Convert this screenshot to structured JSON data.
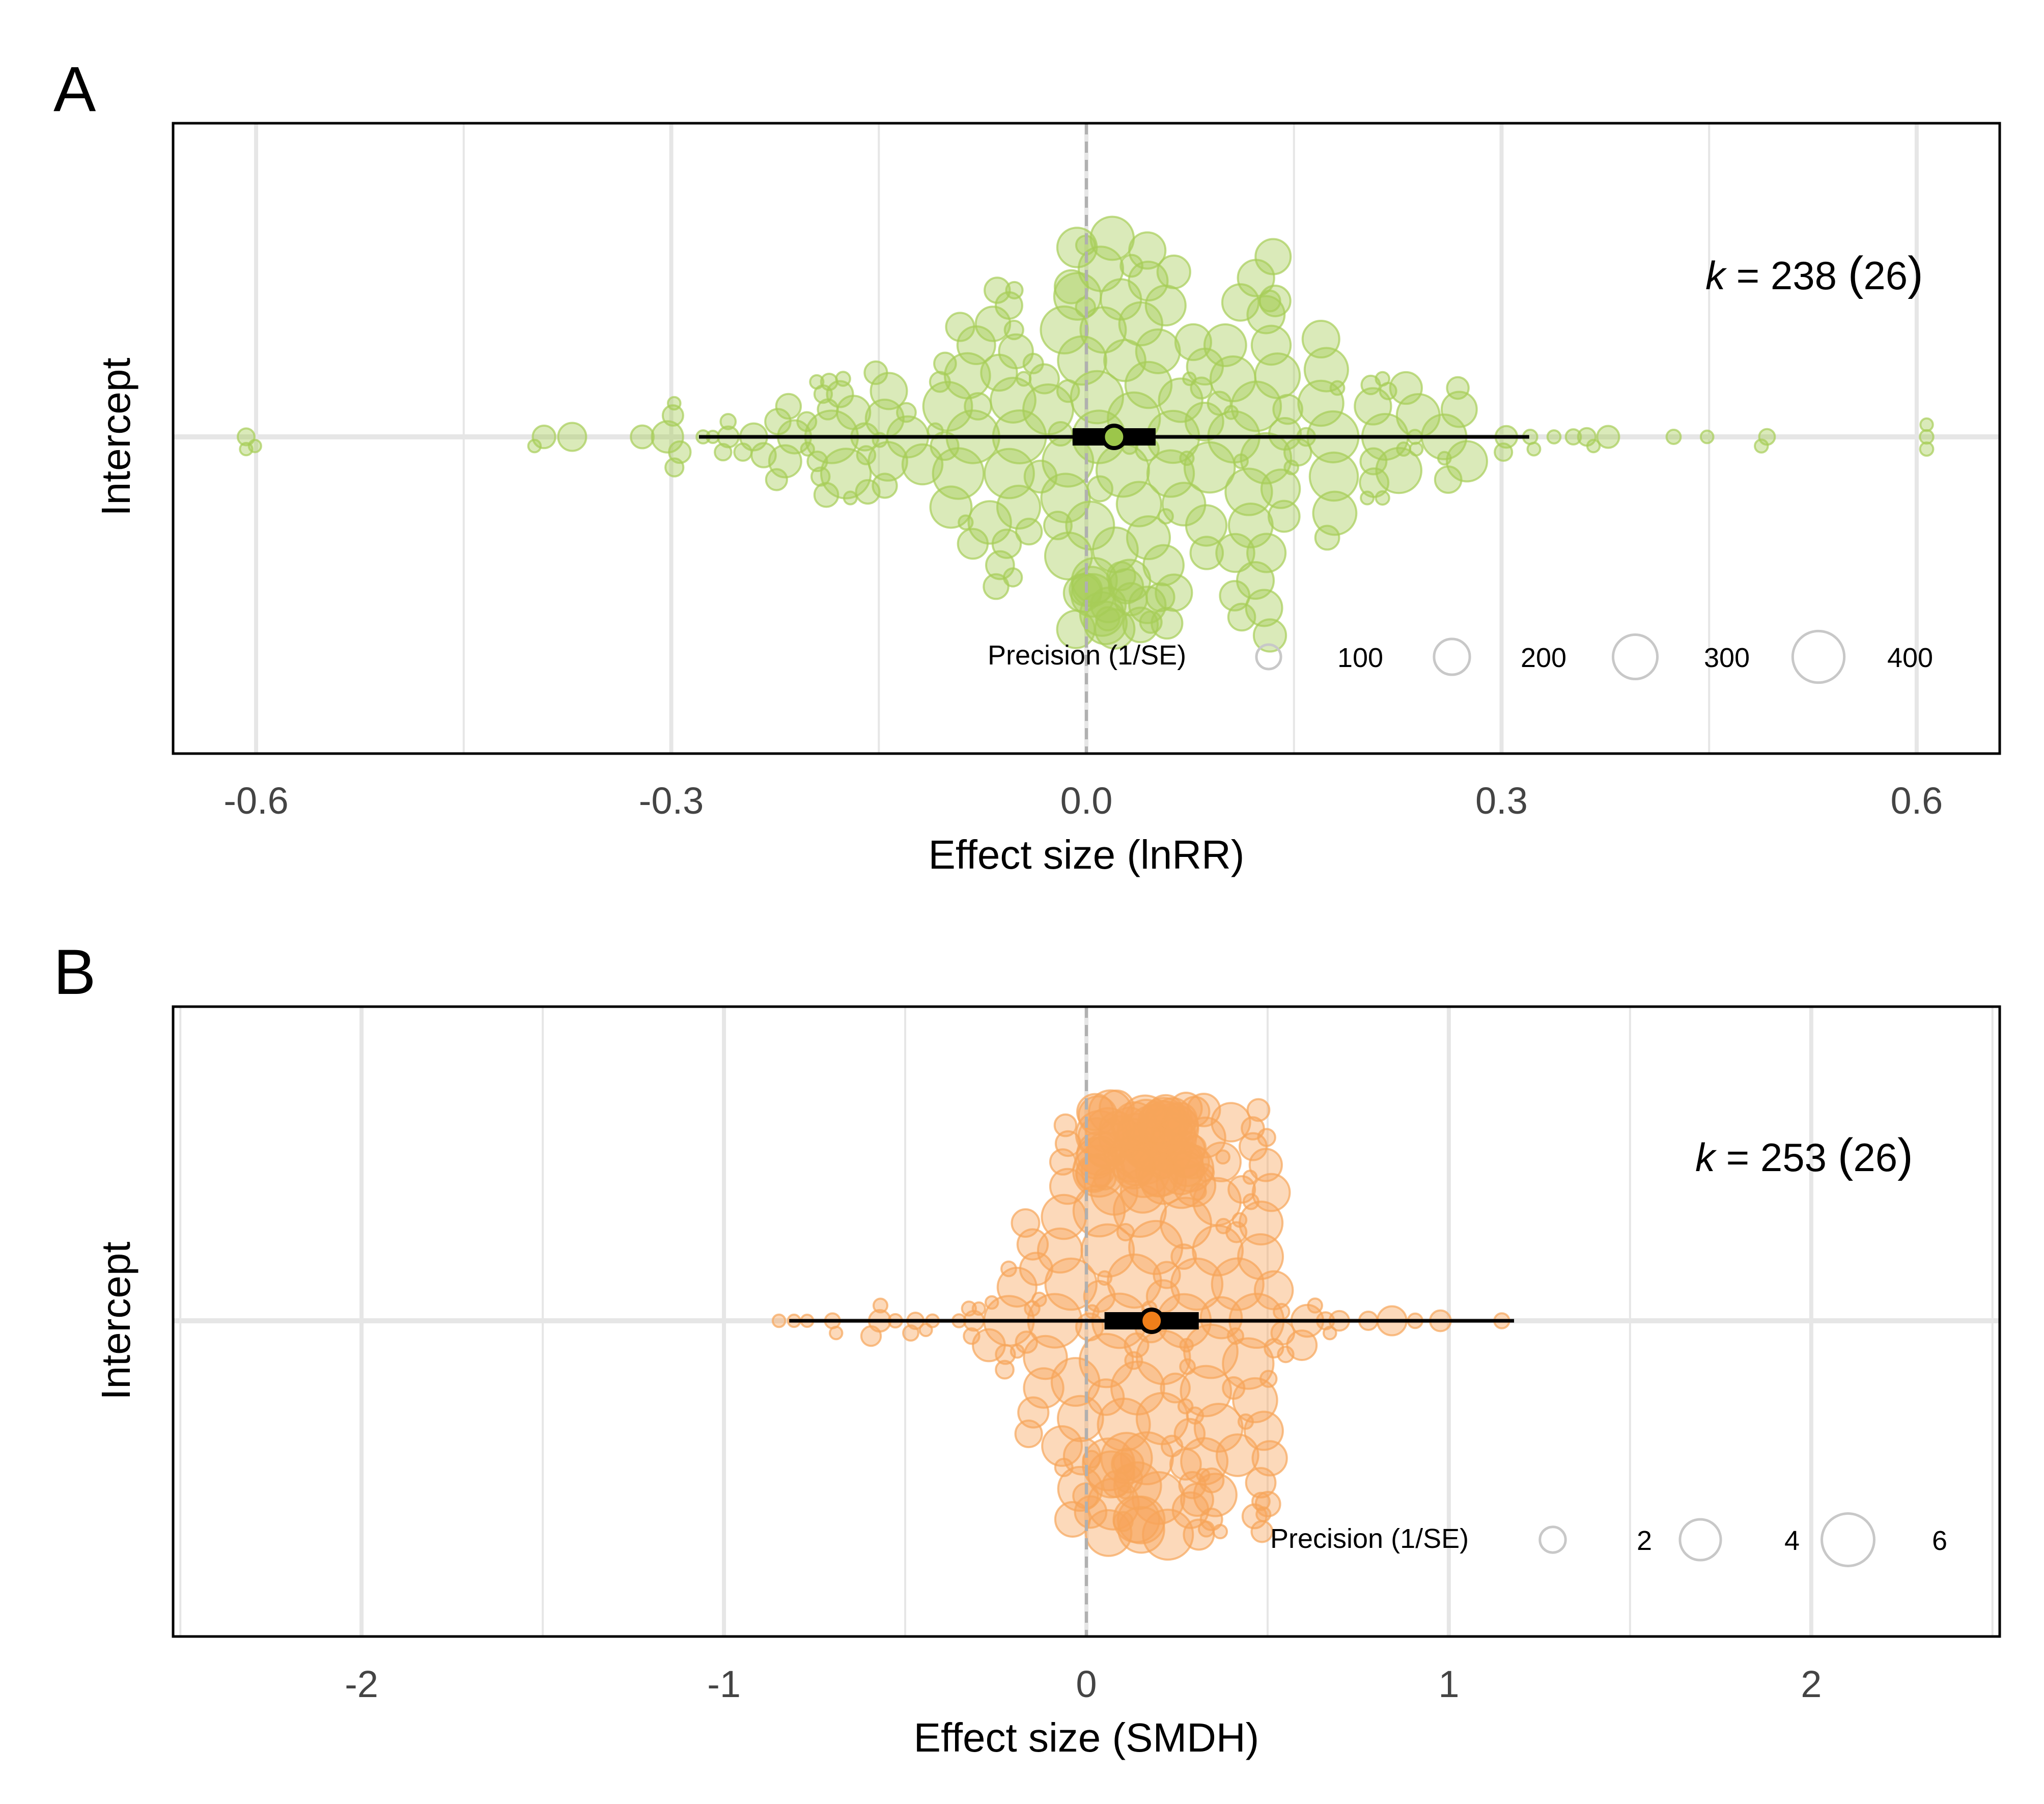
{
  "colors": {
    "panel_a_points": "#a6cd57",
    "panel_a_mean": "#9cc64a",
    "panel_b_points": "#f7a55a",
    "panel_b_mean": "#f07f1a",
    "grid": "#e6e6e6",
    "zero_line": "#b0b0b0"
  },
  "chart_data": [
    {
      "type": "scatter",
      "panel_label": "A",
      "xlabel": "Effect size (lnRR)",
      "ylabel": "Intercept",
      "xlim": [
        -0.66,
        0.66
      ],
      "xticks": [
        "-0.6",
        "-0.3",
        "0.0",
        "0.3",
        "0.6"
      ],
      "xtick_values": [
        -0.6,
        -0.3,
        0.0,
        0.3,
        0.6
      ],
      "grid": true,
      "reference_line": 0,
      "k_label": {
        "prefix": "k",
        "text": " = 238 ",
        "lp": "(",
        "studies": "26",
        "rp": ")"
      },
      "estimate": 0.02,
      "ci": [
        -0.01,
        0.05
      ],
      "pi": [
        -0.28,
        0.32
      ],
      "n_effects": 238,
      "n_studies": 26,
      "precision_range": [
        30,
        420
      ],
      "spread": 0.5,
      "seed": 11,
      "legend": {
        "title": "Precision (1/SE)",
        "values": [
          100,
          200,
          300,
          400
        ],
        "labels": [
          "100",
          "200",
          "300",
          "400"
        ],
        "position": "bottom-right"
      }
    },
    {
      "type": "scatter",
      "panel_label": "B",
      "xlabel": "Effect size (SMDH)",
      "ylabel": "Intercept",
      "xlim": [
        -2.52,
        2.52
      ],
      "xticks": [
        "-2",
        "-1",
        "0",
        "1",
        "2"
      ],
      "xtick_values": [
        -2,
        -1,
        0,
        1,
        2
      ],
      "grid": true,
      "reference_line": 0,
      "k_label": {
        "prefix": "k",
        "text": " = 253 ",
        "lp": "(",
        "studies": "26",
        "rp": ")"
      },
      "estimate": 0.18,
      "ci": [
        0.05,
        0.31
      ],
      "pi": [
        -0.82,
        1.18
      ],
      "n_effects": 253,
      "n_studies": 26,
      "precision_range": [
        0.8,
        6.5
      ],
      "spread": 0.6,
      "seed": 29,
      "legend": {
        "title": "Precision (1/SE)",
        "values": [
          2,
          4,
          6
        ],
        "labels": [
          "2",
          "4",
          "6"
        ],
        "position": "bottom-right"
      }
    }
  ]
}
